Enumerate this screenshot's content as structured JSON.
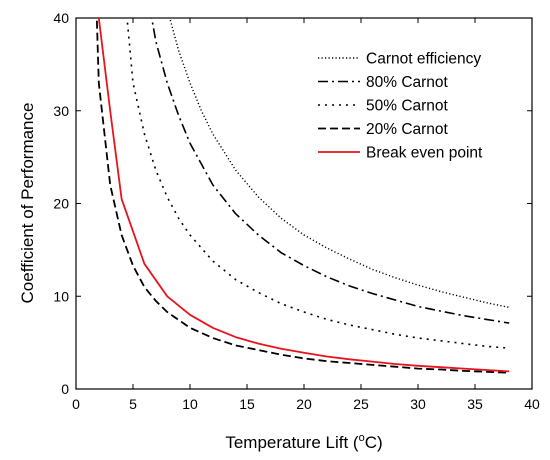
{
  "chart_data": {
    "type": "line",
    "title": "",
    "xlabel_main": "Temperature Lift (",
    "xlabel_sup": "o",
    "xlabel_unit": "C)",
    "ylabel": "Coefficient of Performance",
    "xlim": [
      0,
      40
    ],
    "ylim": [
      0,
      40
    ],
    "xticks": [
      0,
      5,
      10,
      15,
      20,
      25,
      30,
      35,
      40
    ],
    "yticks": [
      0,
      10,
      20,
      30,
      40
    ],
    "grid": false,
    "legend_position": "top-right",
    "series": [
      {
        "name": "Carnot efficiency",
        "color": "#000000",
        "style": "dotted",
        "x": [
          7.5,
          8,
          9,
          10,
          11,
          12,
          14,
          16,
          18,
          20,
          22,
          24,
          26,
          28,
          30,
          32,
          34,
          36,
          38
        ],
        "y": [
          41,
          41,
          36.5,
          33,
          30,
          27.5,
          23.6,
          20.7,
          18.4,
          16.6,
          15.2,
          14.0,
          12.9,
          12.0,
          11.2,
          10.5,
          9.9,
          9.3,
          8.8
        ]
      },
      {
        "name": "80% Carnot",
        "color": "#000000",
        "style": "dashdot",
        "x": [
          6.5,
          7,
          8,
          9,
          10,
          12,
          14,
          16,
          18,
          20,
          22,
          24,
          26,
          28,
          30,
          32,
          34,
          36,
          38
        ],
        "y": [
          41,
          37.5,
          33,
          29.5,
          26.5,
          22,
          18.9,
          16.6,
          14.7,
          13.3,
          12.1,
          11.1,
          10.3,
          9.6,
          8.9,
          8.4,
          7.9,
          7.5,
          7.1
        ]
      },
      {
        "name": "50% Carnot",
        "color": "#000000",
        "style": "dotted-sparse",
        "x": [
          4.4,
          5,
          6,
          7,
          8,
          9,
          10,
          12,
          14,
          16,
          18,
          20,
          22,
          24,
          26,
          28,
          30,
          32,
          34,
          36,
          38
        ],
        "y": [
          41,
          33,
          27.5,
          23.6,
          20.7,
          18.4,
          16.6,
          13.8,
          11.8,
          10.4,
          9.2,
          8.3,
          7.5,
          6.9,
          6.4,
          5.9,
          5.5,
          5.2,
          4.9,
          4.6,
          4.4
        ]
      },
      {
        "name": "20% Carnot",
        "color": "#000000",
        "style": "dashed",
        "x": [
          1.8,
          2,
          3,
          4,
          5,
          6,
          7,
          8,
          10,
          12,
          14,
          16,
          18,
          20,
          22,
          24,
          26,
          28,
          30,
          32,
          34,
          36,
          38
        ],
        "y": [
          41,
          33,
          22,
          16.6,
          13.3,
          11.0,
          9.5,
          8.3,
          6.6,
          5.5,
          4.7,
          4.2,
          3.7,
          3.3,
          3.0,
          2.8,
          2.6,
          2.4,
          2.2,
          2.1,
          1.95,
          1.85,
          1.75
        ]
      },
      {
        "name": "Break even point",
        "color": "#e8141d",
        "style": "solid",
        "x": [
          1.9,
          2,
          3,
          4,
          6,
          8,
          10,
          12,
          14,
          16,
          18,
          20,
          22,
          24,
          26,
          28,
          30,
          32,
          34,
          36,
          38
        ],
        "y": [
          41,
          40,
          30,
          20.5,
          13.5,
          10,
          8,
          6.6,
          5.6,
          4.9,
          4.35,
          3.9,
          3.5,
          3.2,
          2.95,
          2.7,
          2.5,
          2.35,
          2.2,
          2.05,
          1.9
        ]
      }
    ]
  }
}
